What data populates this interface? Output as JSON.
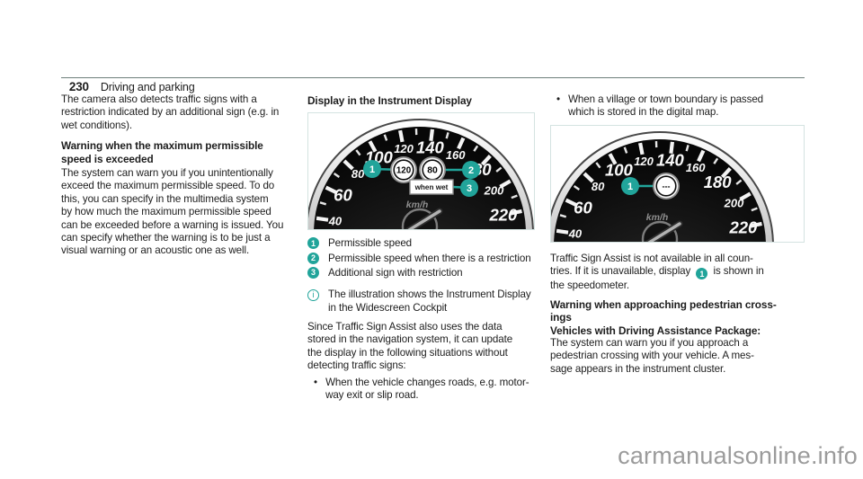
{
  "page": {
    "number": "230",
    "section": "Driving and parking",
    "watermark": "carmanualsonline.info"
  },
  "colors": {
    "accent_teal": "#21a49a",
    "figure_border": "#d4e3e1",
    "header_rule": "#6e7f7b",
    "body_text": "#1d1d1d",
    "watermark_gray": "#9b9b9b"
  },
  "glyphs": {
    "bullet": "•",
    "info_icon": "i"
  },
  "col1": {
    "p1": "The camera also detects traffic signs with a\nrestriction indicated by an additional sign (e.g. in\nwet conditions).",
    "h1": "Warning when the maximum permissible\nspeed is exceeded",
    "p2": "The system can warn you if you unintentionally\nexceed the maximum permissible speed. To do\nthis, you can specify in the multimedia system\nby how much the maximum permissible speed\ncan be exceeded before a warning is issued. You\ncan specify whether the warning is to be just a\nvisual warning or an acoustic one as well."
  },
  "col2": {
    "heading": "Display in the Instrument Display",
    "legend": [
      {
        "num": "1",
        "label": "Permissible speed"
      },
      {
        "num": "2",
        "label": "Permissible speed when there is a restriction"
      },
      {
        "num": "3",
        "label": "Additional sign with restriction"
      }
    ],
    "note": "The illustration shows the Instrument Display\nin the Widescreen Cockpit",
    "p1": "Since Traffic Sign Assist also uses the data\nstored in the navigation system, it can update\nthe display in the following situations without\ndetecting traffic signs:",
    "bullet": "When the vehicle changes roads, e.g. motor-\nway exit or slip road."
  },
  "col3": {
    "bullet1": "When a village or town boundary is passed\nwhich is stored in the digital map.",
    "p1_before": "Traffic Sign Assist is not available in all coun-\ntries. If it is unavailable, display ",
    "p1_badge": "1",
    "p1_after": " is shown in\nthe speedometer.",
    "h1": "Warning when approaching pedestrian cross-\nings",
    "h2": "Vehicles with Driving Assistance Package:",
    "p2": "The system can warn you if you approach a\npedestrian crossing with your vehicle. A mes-\nsage appears in the instrument cluster."
  },
  "figure1": {
    "unit": "km/h",
    "dial_labels": [
      "40",
      "60",
      "80",
      "100",
      "120",
      "140",
      "160",
      "180",
      "200",
      "220"
    ],
    "signs": [
      {
        "kind": "roundel",
        "value": "120",
        "callout": "1"
      },
      {
        "kind": "roundel",
        "value": "80",
        "callout": "2"
      },
      {
        "kind": "plate",
        "value": "when wet",
        "callout": "3"
      }
    ]
  },
  "figure2": {
    "unit": "km/h",
    "dial_labels": [
      "40",
      "60",
      "80",
      "100",
      "120",
      "140",
      "160",
      "180",
      "200",
      "220"
    ],
    "signs": [
      {
        "kind": "roundel",
        "value": "---",
        "callout": "1"
      }
    ]
  }
}
